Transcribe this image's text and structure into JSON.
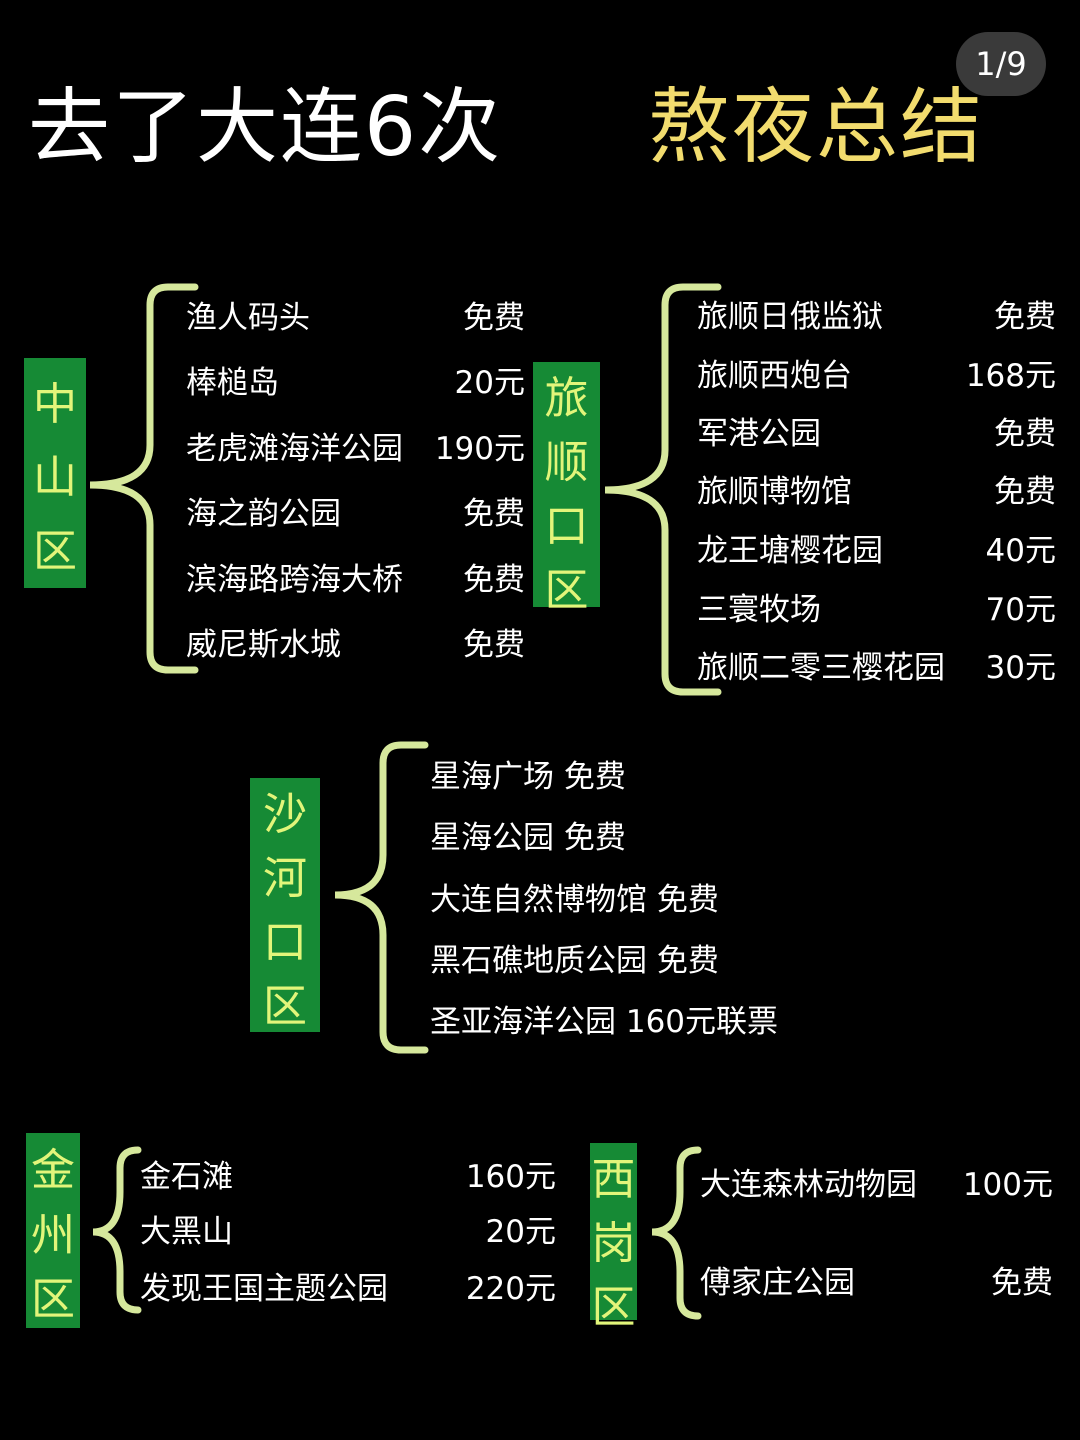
{
  "title": {
    "part1": "去了大连6次",
    "part2": "熬夜总结"
  },
  "page_indicator": "1/9",
  "colors": {
    "district_box": "#168a35",
    "district_text": "#e2f57a",
    "brace": "#d6e89c",
    "title_accent": "#f2dc6e"
  },
  "districts": [
    {
      "name": [
        "中",
        "山",
        "区"
      ],
      "items": [
        {
          "name": "渔人码头",
          "price": "免费"
        },
        {
          "name": "棒槌岛",
          "price": "20元"
        },
        {
          "name": "老虎滩海洋公园",
          "price": "190元"
        },
        {
          "name": "海之韵公园",
          "price": "免费"
        },
        {
          "name": "滨海路跨海大桥",
          "price": "免费"
        },
        {
          "name": "威尼斯水城",
          "price": "免费"
        }
      ]
    },
    {
      "name": [
        "旅",
        "顺",
        "口",
        "区"
      ],
      "items": [
        {
          "name": "旅顺日俄监狱",
          "price": "免费"
        },
        {
          "name": "旅顺西炮台",
          "price": "168元"
        },
        {
          "name": "军港公园",
          "price": "免费"
        },
        {
          "name": "旅顺博物馆",
          "price": "免费"
        },
        {
          "name": "龙王塘樱花园",
          "price": "40元"
        },
        {
          "name": "三寰牧场",
          "price": "70元"
        },
        {
          "name": "旅顺二零三樱花园",
          "price": "30元"
        }
      ]
    },
    {
      "name": [
        "沙",
        "河",
        "口",
        "区"
      ],
      "items": [
        {
          "name": "星海广场 免费"
        },
        {
          "name": "星海公园 免费"
        },
        {
          "name": "大连自然博物馆 免费"
        },
        {
          "name": "黑石礁地质公园 免费"
        },
        {
          "name": "圣亚海洋公园 160元联票"
        }
      ]
    },
    {
      "name": [
        "金",
        "州",
        "区"
      ],
      "items": [
        {
          "name": "金石滩",
          "price": "160元"
        },
        {
          "name": "大黑山",
          "price": "20元"
        },
        {
          "name": "发现王国主题公园",
          "price": "220元"
        }
      ]
    },
    {
      "name": [
        "西",
        "岗",
        "区"
      ],
      "items": [
        {
          "name": "大连森林动物园",
          "price": "100元"
        },
        {
          "name": "傅家庄公园",
          "price": "免费"
        }
      ]
    }
  ]
}
